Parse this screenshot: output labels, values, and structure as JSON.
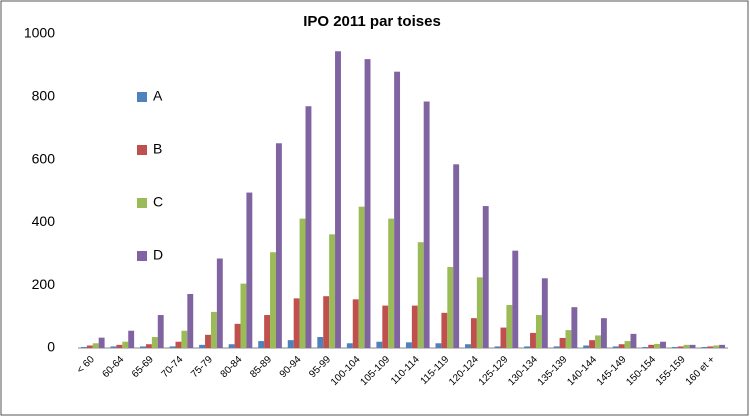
{
  "chart_data": {
    "type": "bar",
    "title": "IPO 2011 par toises",
    "categories": [
      "< 60",
      "60-64",
      "65-69",
      "70-74",
      "75-79",
      "80-84",
      "85-89",
      "90-94",
      "95-99",
      "100-104",
      "105-109",
      "110-114",
      "115-119",
      "120-124",
      "125-129",
      "130-134",
      "135-139",
      "140-144",
      "145-149",
      "150-154",
      "155-159",
      "160 et +"
    ],
    "series": [
      {
        "name": "A",
        "color": "#4f81bd",
        "values": [
          3,
          5,
          5,
          5,
          10,
          12,
          22,
          25,
          35,
          15,
          20,
          18,
          15,
          12,
          5,
          5,
          5,
          8,
          5,
          3,
          3,
          3
        ]
      },
      {
        "name": "B",
        "color": "#c0504d",
        "values": [
          8,
          10,
          12,
          20,
          42,
          77,
          105,
          158,
          165,
          155,
          135,
          135,
          112,
          95,
          65,
          48,
          32,
          25,
          12,
          10,
          5,
          5
        ]
      },
      {
        "name": "C",
        "color": "#9bbb59",
        "values": [
          15,
          20,
          35,
          55,
          115,
          205,
          305,
          412,
          362,
          450,
          412,
          337,
          258,
          225,
          137,
          105,
          57,
          40,
          22,
          13,
          10,
          8
        ]
      },
      {
        "name": "D",
        "color": "#8064a2",
        "values": [
          33,
          55,
          105,
          172,
          285,
          495,
          652,
          770,
          945,
          920,
          880,
          785,
          585,
          452,
          310,
          222,
          130,
          95,
          45,
          20,
          10,
          10
        ]
      }
    ],
    "ylim": [
      0,
      1000
    ],
    "yticks": [
      0,
      200,
      400,
      600,
      800,
      1000
    ],
    "grid": false,
    "legend": "left"
  }
}
